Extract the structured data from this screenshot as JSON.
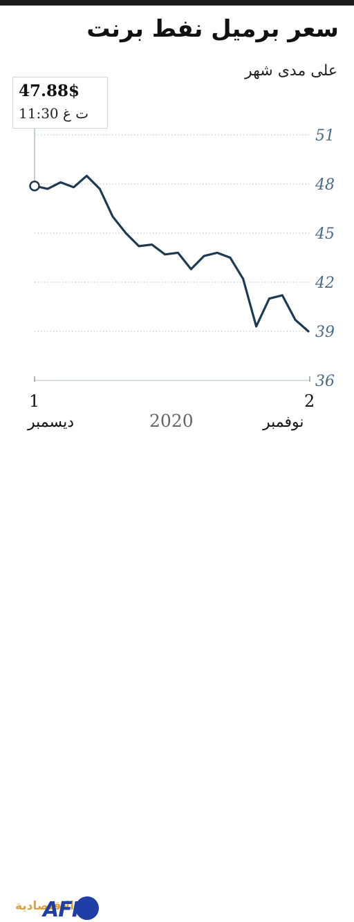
{
  "header": {
    "title": "سعر برميل نفط برنت",
    "subtitle": "على مدى شهر"
  },
  "callout": {
    "price": "47.88$",
    "time": "11:30 ت غ"
  },
  "x_axis": {
    "start_day": "1",
    "start_month": "ديسمبر",
    "end_day": "2",
    "end_month": "نوفمبر",
    "year": "2020"
  },
  "logo": {
    "brand": "AFP",
    "partner": "الاقتصادية"
  },
  "colors": {
    "line": "#1e3a52",
    "tick_label": "#4b6a86",
    "grid": "#b5bcc2",
    "year_label": "#666666"
  },
  "chart_data": {
    "type": "line",
    "title": "سعر برميل نفط برنت",
    "subtitle": "على مدى شهر",
    "y_ticks": [
      51,
      48,
      45,
      42,
      39,
      36
    ],
    "ylim": [
      36,
      51
    ],
    "y_axis_side": "right",
    "x_direction": "right-to-left",
    "x_tick_labels": [
      "2 نوفمبر",
      "1 ديسمبر"
    ],
    "grid": "horizontal dotted",
    "series": [
      {
        "values": [
          39.0,
          39.7,
          41.2,
          41.0,
          39.3,
          42.2,
          43.5,
          43.8,
          43.6,
          42.8,
          43.8,
          43.7,
          44.3,
          44.2,
          45.0,
          46.0,
          47.7,
          48.5,
          47.8,
          48.1,
          47.7,
          47.88
        ]
      }
    ],
    "last_value": 47.88
  }
}
